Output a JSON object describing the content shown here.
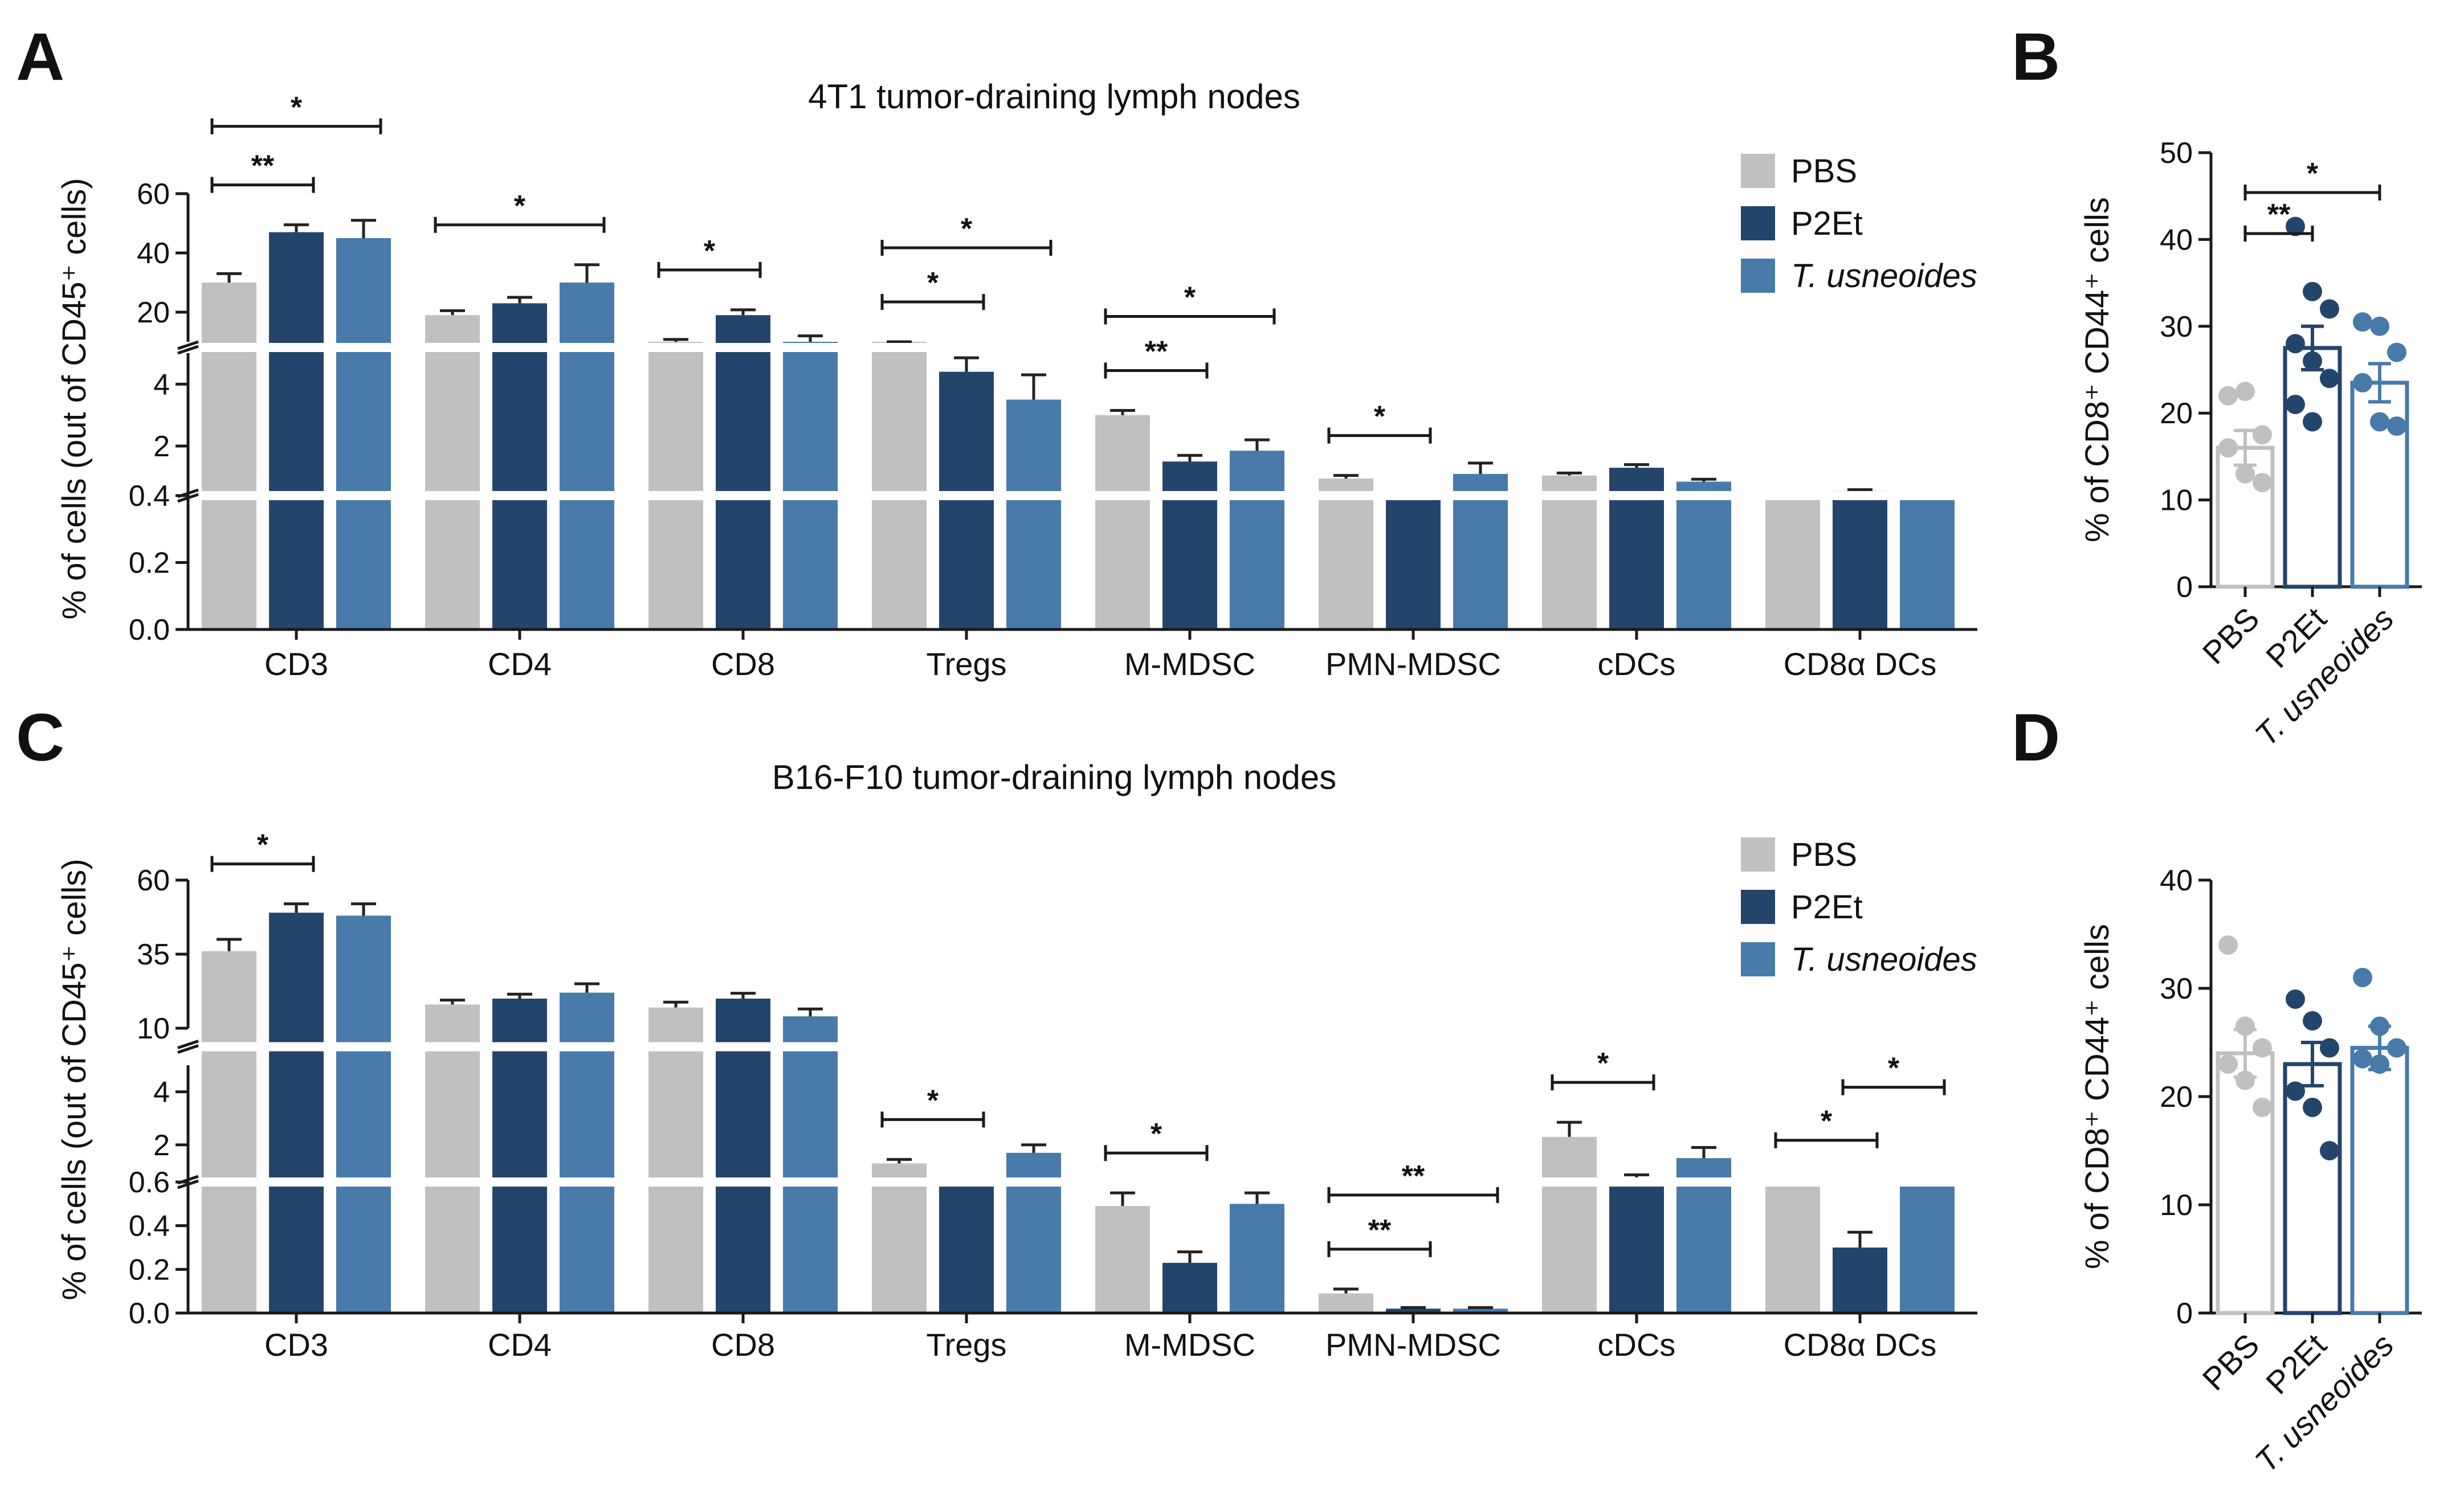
{
  "panels": {
    "a": "A",
    "b": "B",
    "c": "C",
    "d": "D"
  },
  "colors": {
    "PBS": "#c0c0c0",
    "P2Et": "#24456b",
    "T. usneoides": "#487aaa"
  },
  "chart_data": [
    {
      "id": "A",
      "type": "bar",
      "title": "4T1 tumor-draining lymph nodes",
      "ylabel": "% of cells (out of CD45⁺ cells)",
      "categories": [
        "CD3",
        "CD4",
        "CD8",
        "Tregs",
        "M-MDSC",
        "PMN-MDSC",
        "cDCs",
        "CD8α DCs"
      ],
      "series": [
        {
          "name": "PBS",
          "values": [
            30,
            19,
            9,
            5.9,
            3.0,
            0.95,
            1.05,
            0.42
          ],
          "errors": [
            3,
            1.5,
            1.8,
            0.2,
            0.15,
            0.1,
            0.08,
            0.03
          ]
        },
        {
          "name": "P2Et",
          "values": [
            47,
            23,
            19,
            4.4,
            1.5,
            0.42,
            1.3,
            0.55
          ],
          "errors": [
            2.5,
            2,
            1.8,
            0.45,
            0.2,
            0.05,
            0.1,
            0.04
          ]
        },
        {
          "name": "T. usneoides",
          "values": [
            45,
            30,
            10,
            3.5,
            1.85,
            1.1,
            0.85,
            0.45
          ],
          "errors": [
            6,
            6,
            2,
            0.8,
            0.35,
            0.35,
            0.08,
            0.03
          ]
        }
      ],
      "yaxis": {
        "segments": [
          {
            "range": [
              0,
              0.4
            ],
            "ticks": [
              0.0,
              0.2,
              0.4
            ]
          },
          {
            "range": [
              0.4,
              5
            ],
            "ticks": [
              2,
              4
            ]
          },
          {
            "range": [
              10,
              60
            ],
            "ticks": [
              20,
              40,
              60
            ]
          }
        ]
      },
      "significance": [
        {
          "category": "CD3",
          "from": "PBS",
          "to": "P2Et",
          "label": "**"
        },
        {
          "category": "CD3",
          "from": "PBS",
          "to": "T. usneoides",
          "label": "*"
        },
        {
          "category": "CD4",
          "from": "PBS",
          "to": "T. usneoides",
          "label": "*"
        },
        {
          "category": "CD8",
          "from": "PBS",
          "to": "P2Et",
          "label": "*"
        },
        {
          "category": "Tregs",
          "from": "PBS",
          "to": "P2Et",
          "label": "*"
        },
        {
          "category": "Tregs",
          "from": "PBS",
          "to": "T. usneoides",
          "label": "*"
        },
        {
          "category": "M-MDSC",
          "from": "PBS",
          "to": "P2Et",
          "label": "**"
        },
        {
          "category": "M-MDSC",
          "from": "PBS",
          "to": "T. usneoides",
          "label": "*"
        },
        {
          "category": "PMN-MDSC",
          "from": "PBS",
          "to": "P2Et",
          "label": "*"
        }
      ],
      "legend": [
        "PBS",
        "P2Et",
        "T. usneoides"
      ]
    },
    {
      "id": "B",
      "type": "bar",
      "ylabel": "% of CD8⁺ CD44⁺ cells",
      "categories": [
        "PBS",
        "P2Et",
        "T. usneoides"
      ],
      "values": [
        16,
        27.5,
        23.5
      ],
      "errors": [
        2,
        2.5,
        2.2
      ],
      "points": [
        [
          22,
          22.5,
          17.5,
          16,
          13,
          12
        ],
        [
          41.5,
          34,
          32,
          28,
          26,
          24,
          21,
          19
        ],
        [
          30.5,
          30,
          27,
          23.5,
          19,
          18.5
        ]
      ],
      "ylim": [
        0,
        50
      ],
      "yticks": [
        0,
        10,
        20,
        30,
        40,
        50
      ],
      "significance": [
        {
          "from": "PBS",
          "to": "P2Et",
          "label": "**"
        },
        {
          "from": "PBS",
          "to": "T. usneoides",
          "label": "*"
        }
      ]
    },
    {
      "id": "C",
      "type": "bar",
      "title": "B16-F10 tumor-draining lymph nodes",
      "ylabel": "% of cells (out of CD45⁺ cells)",
      "categories": [
        "CD3",
        "CD4",
        "CD8",
        "Tregs",
        "M-MDSC",
        "PMN-MDSC",
        "cDCs",
        "CD8α DCs"
      ],
      "series": [
        {
          "name": "PBS",
          "values": [
            36,
            18,
            17,
            1.3,
            0.49,
            0.09,
            2.3,
            0.63
          ],
          "errors": [
            4,
            1.5,
            1.8,
            0.15,
            0.06,
            0.02,
            0.55,
            0.04
          ]
        },
        {
          "name": "P2Et",
          "values": [
            49,
            20,
            20,
            0.65,
            0.23,
            0.02,
            0.75,
            0.3
          ],
          "errors": [
            3,
            1.5,
            1.8,
            0.05,
            0.05,
            0.005,
            0.12,
            0.07
          ]
        },
        {
          "name": "T. usneoides",
          "values": [
            48,
            22,
            14,
            1.7,
            0.5,
            0.02,
            1.5,
            0.6
          ],
          "errors": [
            4,
            3,
            2.5,
            0.3,
            0.05,
            0.005,
            0.4,
            0.03
          ]
        }
      ],
      "yaxis": {
        "segments": [
          {
            "range": [
              0,
              0.6
            ],
            "ticks": [
              0.0,
              0.2,
              0.4,
              0.6
            ]
          },
          {
            "range": [
              0.6,
              5
            ],
            "ticks": [
              2,
              4
            ]
          },
          {
            "range": [
              10,
              60
            ],
            "ticks": [
              10,
              35,
              60
            ]
          }
        ]
      },
      "significance": [
        {
          "category": "CD3",
          "from": "PBS",
          "to": "P2Et",
          "label": "*"
        },
        {
          "category": "Tregs",
          "from": "PBS",
          "to": "P2Et",
          "label": "*"
        },
        {
          "category": "M-MDSC",
          "from": "PBS",
          "to": "P2Et",
          "label": "*"
        },
        {
          "category": "PMN-MDSC",
          "from": "PBS",
          "to": "P2Et",
          "label": "**"
        },
        {
          "category": "PMN-MDSC",
          "from": "PBS",
          "to": "T. usneoides",
          "label": "**"
        },
        {
          "category": "cDCs",
          "from": "PBS",
          "to": "P2Et",
          "label": "*"
        },
        {
          "category": "CD8α DCs",
          "from": "PBS",
          "to": "P2Et",
          "label": "*"
        },
        {
          "category": "CD8α DCs",
          "from": "P2Et",
          "to": "T. usneoides",
          "label": "*"
        }
      ],
      "legend": [
        "PBS",
        "P2Et",
        "T. usneoides"
      ]
    },
    {
      "id": "D",
      "type": "bar",
      "ylabel": "% of CD8⁺ CD44⁺ cells",
      "categories": [
        "PBS",
        "P2Et",
        "T. usneoides"
      ],
      "values": [
        24,
        23,
        24.5
      ],
      "errors": [
        2.2,
        2,
        2
      ],
      "points": [
        [
          34,
          26.5,
          24.5,
          23,
          21.5,
          19
        ],
        [
          29,
          27,
          24.5,
          20.5,
          19,
          15
        ],
        [
          31,
          26.5,
          24.5,
          23.5,
          23
        ]
      ],
      "ylim": [
        0,
        40
      ],
      "yticks": [
        0,
        10,
        20,
        30,
        40
      ],
      "significance": []
    }
  ]
}
